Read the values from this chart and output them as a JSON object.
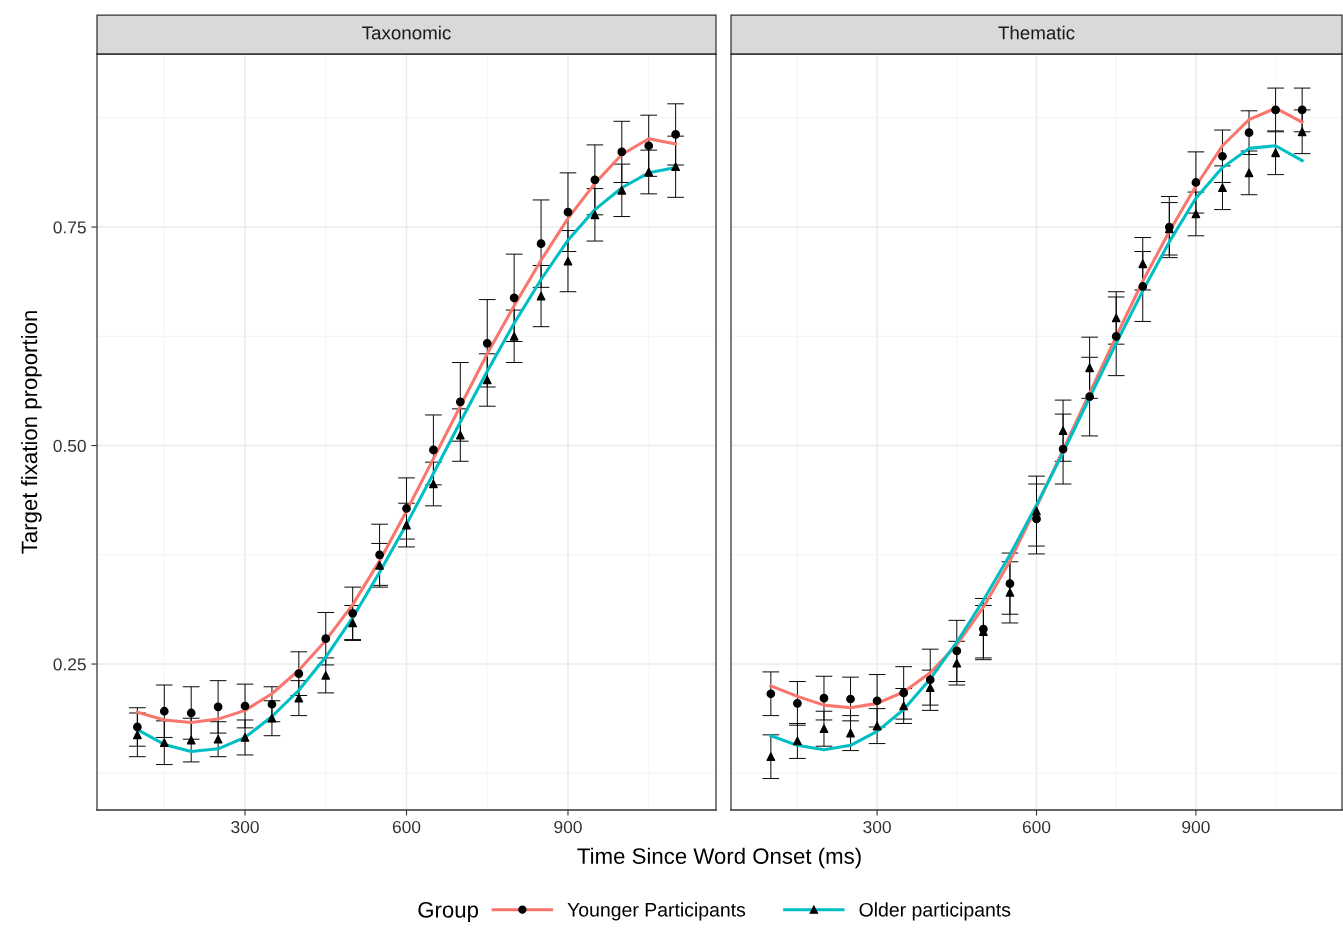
{
  "chart_data": [
    {
      "type": "line",
      "title": "Taxonomic",
      "xlabel": "Time Since Word Onset (ms)",
      "ylabel": "Target fixation proportion",
      "legend_title": "Group",
      "legend": "bottom",
      "grid": true,
      "x": [
        100,
        150,
        200,
        250,
        300,
        350,
        400,
        450,
        500,
        550,
        600,
        650,
        700,
        750,
        800,
        850,
        900,
        950,
        1000,
        1050,
        1100
      ],
      "xlim": [
        25,
        1175
      ],
      "xticks": [
        300,
        600,
        900
      ],
      "ylim": [
        0.083,
        0.948
      ],
      "yticks": [
        {
          "value": 0.25,
          "label": "0.25"
        },
        {
          "value": 0.5,
          "label": "0.50"
        },
        {
          "value": 0.75,
          "label": "0.75"
        }
      ],
      "series": [
        {
          "name": "Younger Participants",
          "color": "#f8766d",
          "values": [
            0.195,
            0.186,
            0.183,
            0.187,
            0.197,
            0.216,
            0.243,
            0.277,
            0.318,
            0.368,
            0.425,
            0.485,
            0.545,
            0.605,
            0.66,
            0.712,
            0.76,
            0.8,
            0.833,
            0.851,
            0.845
          ]
        },
        {
          "name": "Older participants",
          "color": "#00bfc4",
          "values": [
            0.175,
            0.158,
            0.15,
            0.153,
            0.166,
            0.19,
            0.22,
            0.258,
            0.303,
            0.355,
            0.41,
            0.468,
            0.527,
            0.585,
            0.64,
            0.69,
            0.735,
            0.77,
            0.795,
            0.812,
            0.818
          ]
        },
        {
          "type": "scatter",
          "marker": "circle",
          "color": "#000000",
          "values": [
            0.178,
            0.196,
            0.194,
            0.201,
            0.202,
            0.204,
            0.239,
            0.279,
            0.308,
            0.375,
            0.428,
            0.495,
            0.55,
            0.617,
            0.669,
            0.731,
            0.767,
            0.804,
            0.836,
            0.843,
            0.856
          ],
          "errors": [
            0.022,
            0.03,
            0.03,
            0.03,
            0.025,
            0.02,
            0.025,
            0.03,
            0.03,
            0.035,
            0.035,
            0.04,
            0.045,
            0.05,
            0.05,
            0.05,
            0.045,
            0.04,
            0.035,
            0.035,
            0.035
          ]
        },
        {
          "type": "scatter",
          "marker": "triangle",
          "color": "#000000",
          "values": [
            0.169,
            0.16,
            0.163,
            0.164,
            0.166,
            0.188,
            0.211,
            0.237,
            0.297,
            0.363,
            0.409,
            0.456,
            0.512,
            0.575,
            0.625,
            0.671,
            0.711,
            0.764,
            0.792,
            0.813,
            0.819
          ],
          "errors": [
            0.025,
            0.025,
            0.025,
            0.02,
            0.02,
            0.02,
            0.02,
            0.02,
            0.02,
            0.025,
            0.025,
            0.025,
            0.03,
            0.03,
            0.03,
            0.035,
            0.035,
            0.03,
            0.03,
            0.025,
            0.035
          ]
        }
      ]
    },
    {
      "type": "line",
      "title": "Thematic",
      "grid": true,
      "tick_labels": "x",
      "x": [
        100,
        150,
        200,
        250,
        300,
        350,
        400,
        450,
        500,
        550,
        600,
        650,
        700,
        750,
        800,
        850,
        900,
        950,
        1000,
        1050,
        1100
      ],
      "xlim": [
        25,
        1175
      ],
      "xticks": [
        300,
        600,
        900
      ],
      "ylim": [
        0.083,
        0.948
      ],
      "yticks": [
        {
          "value": 0.25,
          "label": null
        },
        {
          "value": 0.5,
          "label": null
        },
        {
          "value": 0.75,
          "label": null
        }
      ],
      "series": [
        {
          "color": "#f8766d",
          "values": [
            0.225,
            0.213,
            0.203,
            0.2,
            0.205,
            0.218,
            0.24,
            0.272,
            0.315,
            0.368,
            0.43,
            0.495,
            0.56,
            0.625,
            0.688,
            0.745,
            0.797,
            0.843,
            0.873,
            0.886,
            0.87
          ]
        },
        {
          "color": "#00bfc4",
          "values": [
            0.168,
            0.157,
            0.152,
            0.157,
            0.173,
            0.198,
            0.233,
            0.275,
            0.323,
            0.375,
            0.432,
            0.492,
            0.555,
            0.617,
            0.677,
            0.733,
            0.783,
            0.818,
            0.84,
            0.843,
            0.826
          ]
        },
        {
          "type": "scatter",
          "marker": "circle",
          "color": "#000000",
          "values": [
            0.216,
            0.205,
            0.211,
            0.21,
            0.208,
            0.217,
            0.232,
            0.265,
            0.29,
            0.342,
            0.416,
            0.496,
            0.556,
            0.625,
            0.682,
            0.75,
            0.801,
            0.831,
            0.858,
            0.884,
            0.884
          ],
          "errors": [
            0.025,
            0.025,
            0.025,
            0.025,
            0.03,
            0.03,
            0.035,
            0.035,
            0.035,
            0.035,
            0.04,
            0.04,
            0.045,
            0.045,
            0.04,
            0.035,
            0.035,
            0.03,
            0.025,
            0.025,
            0.025
          ]
        },
        {
          "type": "scatter",
          "marker": "triangle",
          "color": "#000000",
          "values": [
            0.144,
            0.162,
            0.176,
            0.171,
            0.179,
            0.202,
            0.223,
            0.251,
            0.287,
            0.332,
            0.425,
            0.517,
            0.589,
            0.646,
            0.708,
            0.748,
            0.765,
            0.795,
            0.812,
            0.835,
            0.859
          ],
          "errors": [
            0.025,
            0.02,
            0.02,
            0.02,
            0.02,
            0.02,
            0.02,
            0.025,
            0.03,
            0.035,
            0.04,
            0.035,
            0.035,
            0.03,
            0.03,
            0.03,
            0.025,
            0.025,
            0.025,
            0.025,
            0.025
          ]
        }
      ]
    }
  ]
}
